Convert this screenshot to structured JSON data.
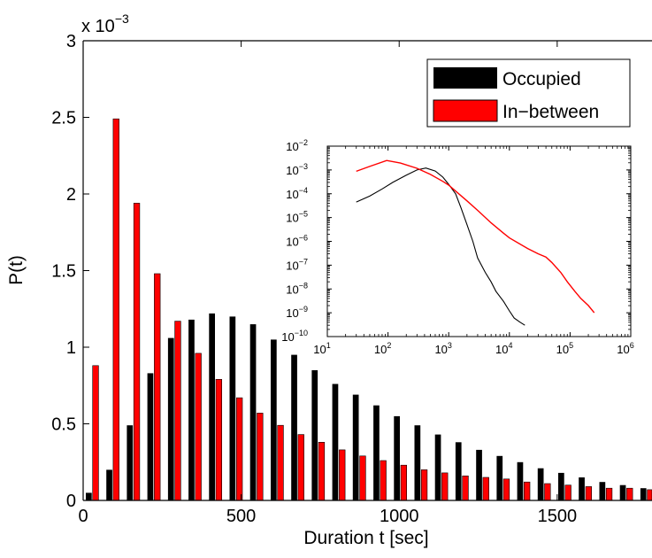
{
  "chart_data": [
    {
      "type": "bar",
      "xlabel": "Duration t [sec]",
      "ylabel": "P(t)",
      "y_multiplier_base": "x 10",
      "y_multiplier_exp": "−3",
      "xlim": [
        0,
        1800
      ],
      "ylim": [
        0,
        3
      ],
      "xticks": [
        0,
        500,
        1000,
        1500
      ],
      "yticks": [
        0,
        0.5,
        1,
        1.5,
        2,
        2.5,
        3
      ],
      "ytick_labels": [
        "0",
        "0.5",
        "1",
        "1.5",
        "2",
        "2.5",
        "3"
      ],
      "x": [
        30,
        95,
        160,
        225,
        290,
        355,
        420,
        485,
        550,
        615,
        680,
        745,
        810,
        875,
        940,
        1005,
        1070,
        1135,
        1200,
        1265,
        1330,
        1395,
        1460,
        1525,
        1590,
        1655,
        1720,
        1785
      ],
      "series": [
        {
          "name": "Occupied",
          "color": "#000000",
          "values": [
            0.05,
            0.2,
            0.49,
            0.83,
            1.06,
            1.18,
            1.22,
            1.2,
            1.15,
            1.05,
            0.95,
            0.85,
            0.76,
            0.69,
            0.62,
            0.55,
            0.49,
            0.43,
            0.38,
            0.33,
            0.29,
            0.25,
            0.21,
            0.18,
            0.15,
            0.12,
            0.1,
            0.08
          ]
        },
        {
          "name": "In−between",
          "color": "#ff0000",
          "values": [
            0.88,
            2.49,
            1.94,
            1.48,
            1.17,
            0.96,
            0.79,
            0.67,
            0.57,
            0.49,
            0.43,
            0.38,
            0.33,
            0.29,
            0.26,
            0.23,
            0.2,
            0.18,
            0.16,
            0.15,
            0.14,
            0.12,
            0.11,
            0.1,
            0.09,
            0.08,
            0.08,
            0.07
          ]
        }
      ],
      "legend": {
        "position": "top-right",
        "entries": [
          {
            "label": "Occupied",
            "color": "#000000"
          },
          {
            "label": "In−between",
            "color": "#ff0000"
          }
        ]
      }
    },
    {
      "type": "line",
      "x_scale": "log",
      "y_scale": "log",
      "xlim": [
        10,
        1000000
      ],
      "ylim": [
        1e-10,
        0.01
      ],
      "xtick_base": "10",
      "xtick_exponents": [
        "1",
        "2",
        "3",
        "4",
        "5",
        "6"
      ],
      "ytick_base": "10",
      "ytick_exponents": [
        "−10",
        "−9",
        "−8",
        "−7",
        "−6",
        "−5",
        "−4",
        "−3",
        "−2"
      ],
      "series": [
        {
          "name": "Occupied",
          "color": "#000000",
          "points": [
            [
              30,
              4.5e-05
            ],
            [
              50,
              8e-05
            ],
            [
              80,
              0.00016
            ],
            [
              120,
              0.0003
            ],
            [
              200,
              0.0006
            ],
            [
              300,
              0.001
            ],
            [
              420,
              0.0012
            ],
            [
              600,
              0.0009
            ],
            [
              800,
              0.0005
            ],
            [
              1000,
              0.00025
            ],
            [
              1300,
              0.0001
            ],
            [
              1600,
              2.5e-05
            ],
            [
              2000,
              5e-06
            ],
            [
              2500,
              1e-06
            ],
            [
              3000,
              2e-07
            ],
            [
              4000,
              5e-08
            ],
            [
              5000,
              2e-08
            ],
            [
              6000,
              8e-09
            ],
            [
              8000,
              3e-09
            ],
            [
              10000,
              1.2e-09
            ],
            [
              12000,
              6e-10
            ],
            [
              15000,
              4e-10
            ],
            [
              18000,
              3e-10
            ]
          ]
        },
        {
          "name": "In−between",
          "color": "#ff0000",
          "points": [
            [
              30,
              0.00088
            ],
            [
              50,
              0.0014
            ],
            [
              95,
              0.00249
            ],
            [
              160,
              0.00194
            ],
            [
              300,
              0.00117
            ],
            [
              500,
              0.00065
            ],
            [
              800,
              0.00033
            ],
            [
              1000,
              0.00023
            ],
            [
              2000,
              5e-05
            ],
            [
              3000,
              2e-05
            ],
            [
              5000,
              6e-06
            ],
            [
              8000,
              2.2e-06
            ],
            [
              10000,
              1.4e-06
            ],
            [
              20000,
              5e-07
            ],
            [
              30000,
              3e-07
            ],
            [
              40000,
              2.2e-07
            ],
            [
              50000,
              1.3e-07
            ],
            [
              70000,
              5e-08
            ],
            [
              90000,
              2e-08
            ],
            [
              120000,
              8e-09
            ],
            [
              150000,
              4e-09
            ],
            [
              200000,
              2e-09
            ],
            [
              250000,
              1e-09
            ]
          ]
        }
      ]
    }
  ]
}
